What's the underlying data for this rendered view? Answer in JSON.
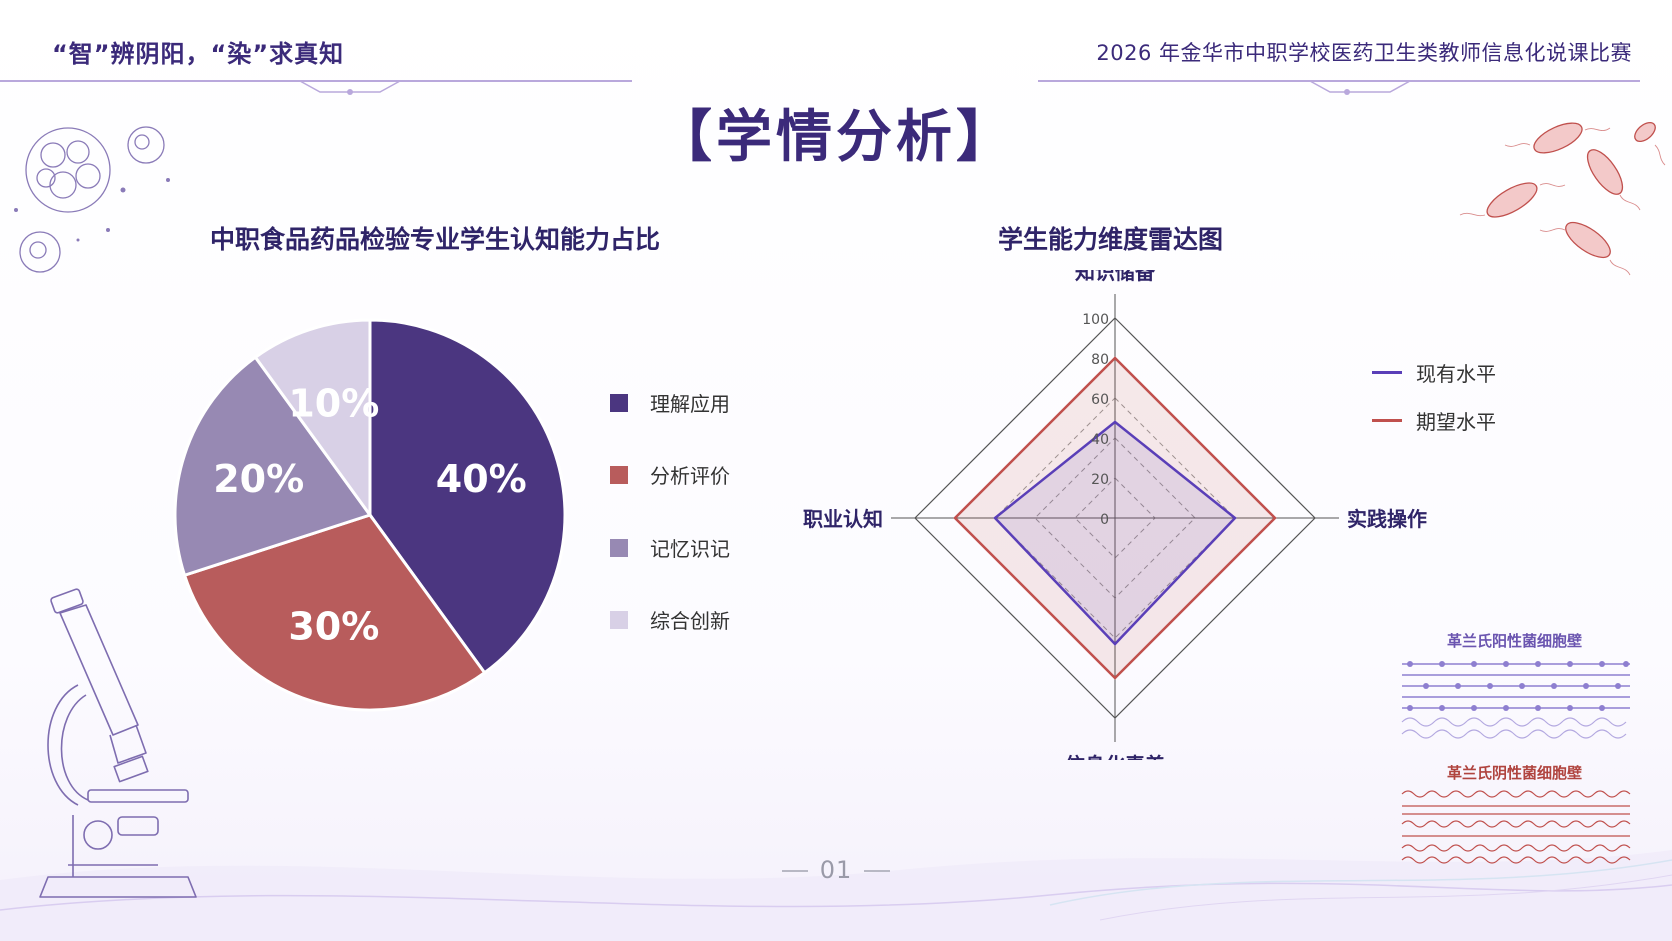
{
  "header": {
    "left_title": "“智”辨阴阳，“染”求真知",
    "right_title": "2026 年金华市中职学校医药卫生类教师信息化说课比赛"
  },
  "page_title": "【学情分析】",
  "page_number": "01",
  "colors": {
    "primary": "#4b3680",
    "secondary": "#b85c5c",
    "tertiary": "#9789b3",
    "light": "#d8d0e6"
  },
  "decorations": {
    "gram_positive_label": "革兰氏阳性菌细胞壁",
    "gram_negative_label": "革兰氏阴性菌细胞壁"
  },
  "chart_data": [
    {
      "type": "pie",
      "title": "中职食品药品检验专业学生认知能力占比",
      "categories": [
        "理解应用",
        "分析评价",
        "记忆识记",
        "综合创新"
      ],
      "values": [
        40,
        30,
        20,
        10
      ],
      "data_labels": [
        "40%",
        "30%",
        "20%",
        "10%"
      ],
      "colors": [
        "#4b3680",
        "#b85c5c",
        "#9789b3",
        "#d8d0e6"
      ],
      "legend_position": "right"
    },
    {
      "type": "radar",
      "title": "学生能力维度雷达图",
      "axes": [
        "知识储备",
        "实践操作",
        "信息化素养",
        "职业认知"
      ],
      "ticks": [
        "0",
        "20",
        "40",
        "60",
        "80",
        "100"
      ],
      "series": [
        {
          "name": "现有水平",
          "values": [
            48,
            60,
            63,
            60
          ],
          "color": "#5a3fb8"
        },
        {
          "name": "期望水平",
          "values": [
            80,
            80,
            80,
            80
          ],
          "color": "#c0504d"
        }
      ],
      "rlim": [
        0,
        100
      ],
      "legend_position": "top-right"
    }
  ]
}
